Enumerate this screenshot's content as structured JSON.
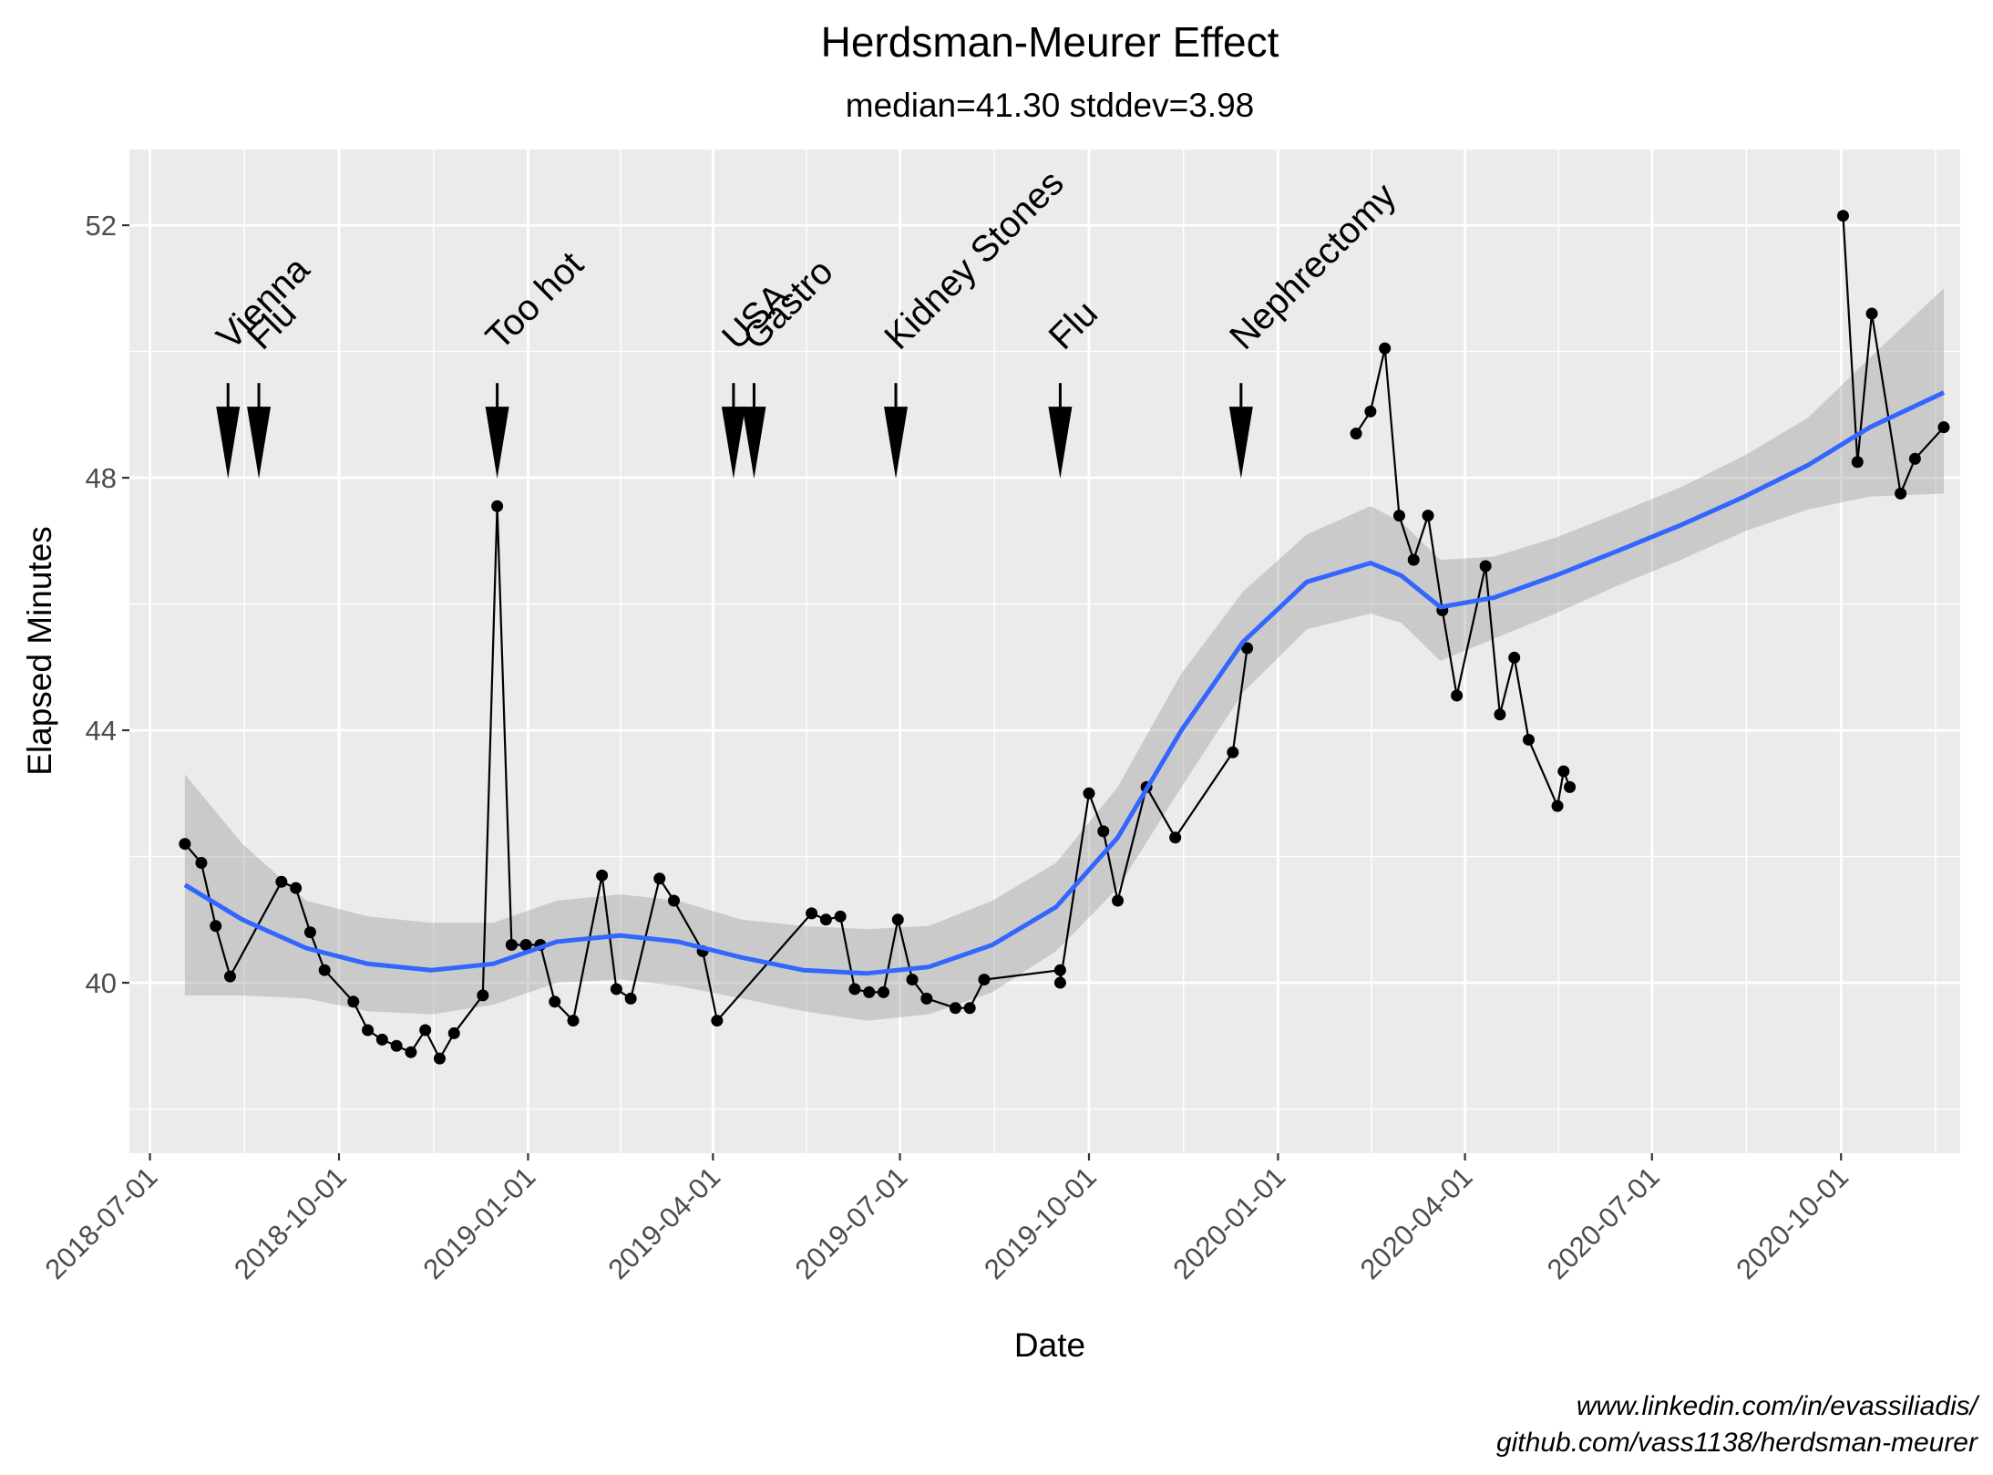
{
  "chart_data": {
    "type": "line",
    "title": "Herdsman-Meurer Effect",
    "subtitle": "median=41.30 stddev=3.98",
    "xlabel": "Date",
    "ylabel": "Elapsed Minutes",
    "xlim": [
      "2018-06-21",
      "2020-11-28"
    ],
    "ylim": [
      37.3,
      53.2
    ],
    "y_ticks": [
      40,
      44,
      48,
      52
    ],
    "x_ticks": [
      "2018-07-01",
      "2018-10-01",
      "2019-01-01",
      "2019-04-01",
      "2019-07-01",
      "2019-10-01",
      "2020-01-01",
      "2020-04-01",
      "2020-07-01",
      "2020-10-01"
    ],
    "grid": true,
    "background": "#ebebeb",
    "colors": {
      "data": "#000000",
      "smooth": "#3366ff",
      "ribbon": "#999999"
    },
    "series": [
      {
        "segments": [
          [
            {
              "x": "2018-07-18",
              "y": 42.2
            },
            {
              "x": "2018-07-26",
              "y": 41.9
            },
            {
              "x": "2018-08-02",
              "y": 40.9
            },
            {
              "x": "2018-08-09",
              "y": 40.1
            },
            {
              "x": "2018-09-03",
              "y": 41.6
            },
            {
              "x": "2018-09-10",
              "y": 41.5
            },
            {
              "x": "2018-09-17",
              "y": 40.8
            },
            {
              "x": "2018-09-24",
              "y": 40.2
            },
            {
              "x": "2018-10-08",
              "y": 39.7
            },
            {
              "x": "2018-10-15",
              "y": 39.25
            },
            {
              "x": "2018-10-22",
              "y": 39.1
            },
            {
              "x": "2018-10-29",
              "y": 39.0
            },
            {
              "x": "2018-11-05",
              "y": 38.9
            },
            {
              "x": "2018-11-12",
              "y": 39.25
            },
            {
              "x": "2018-11-19",
              "y": 38.8
            },
            {
              "x": "2018-11-26",
              "y": 39.2
            },
            {
              "x": "2018-12-10",
              "y": 39.8
            },
            {
              "x": "2018-12-17",
              "y": 47.55
            },
            {
              "x": "2018-12-24",
              "y": 40.6
            },
            {
              "x": "2018-12-31",
              "y": 40.6
            },
            {
              "x": "2019-01-07",
              "y": 40.6
            },
            {
              "x": "2019-01-14",
              "y": 39.7
            },
            {
              "x": "2019-01-23",
              "y": 39.4
            },
            {
              "x": "2019-02-06",
              "y": 41.7
            },
            {
              "x": "2019-02-13",
              "y": 39.9
            },
            {
              "x": "2019-02-20",
              "y": 39.75
            },
            {
              "x": "2019-03-06",
              "y": 41.65
            },
            {
              "x": "2019-03-13",
              "y": 41.3
            },
            {
              "x": "2019-03-27",
              "y": 40.5
            },
            {
              "x": "2019-04-03",
              "y": 39.4
            },
            {
              "x": "2019-05-19",
              "y": 41.1
            },
            {
              "x": "2019-05-26",
              "y": 41.0
            },
            {
              "x": "2019-06-02",
              "y": 41.05
            },
            {
              "x": "2019-06-09",
              "y": 39.9
            },
            {
              "x": "2019-06-16",
              "y": 39.85
            },
            {
              "x": "2019-06-23",
              "y": 39.85
            },
            {
              "x": "2019-06-30",
              "y": 41.0
            },
            {
              "x": "2019-07-07",
              "y": 40.05
            },
            {
              "x": "2019-07-14",
              "y": 39.75
            },
            {
              "x": "2019-07-28",
              "y": 39.6
            },
            {
              "x": "2019-08-04",
              "y": 39.6
            },
            {
              "x": "2019-08-11",
              "y": 40.05
            },
            {
              "x": "2019-09-17",
              "y": 40.2
            },
            {
              "x": "2019-09-17",
              "y": 40.0
            },
            {
              "x": "2019-10-01",
              "y": 43.0
            },
            {
              "x": "2019-10-08",
              "y": 42.4
            },
            {
              "x": "2019-10-15",
              "y": 41.3
            },
            {
              "x": "2019-10-29",
              "y": 43.1
            },
            {
              "x": "2019-11-12",
              "y": 42.3
            },
            {
              "x": "2019-12-10",
              "y": 43.65
            },
            {
              "x": "2019-12-17",
              "y": 45.3
            }
          ],
          [
            {
              "x": "2020-02-08",
              "y": 48.7
            },
            {
              "x": "2020-02-15",
              "y": 49.05
            },
            {
              "x": "2020-02-22",
              "y": 50.05
            },
            {
              "x": "2020-02-29",
              "y": 47.4
            },
            {
              "x": "2020-03-07",
              "y": 46.7
            },
            {
              "x": "2020-03-14",
              "y": 47.4
            },
            {
              "x": "2020-03-21",
              "y": 45.9
            },
            {
              "x": "2020-03-28",
              "y": 44.55
            },
            {
              "x": "2020-04-11",
              "y": 46.6
            },
            {
              "x": "2020-04-18",
              "y": 44.25
            },
            {
              "x": "2020-04-25",
              "y": 45.15
            },
            {
              "x": "2020-05-02",
              "y": 43.85
            },
            {
              "x": "2020-05-16",
              "y": 42.8
            },
            {
              "x": "2020-05-19",
              "y": 43.35
            },
            {
              "x": "2020-05-22",
              "y": 43.1
            }
          ],
          [
            {
              "x": "2020-10-02",
              "y": 52.15
            },
            {
              "x": "2020-10-09",
              "y": 48.25
            },
            {
              "x": "2020-10-16",
              "y": 50.6
            },
            {
              "x": "2020-10-30",
              "y": 47.75
            },
            {
              "x": "2020-11-06",
              "y": 48.3
            },
            {
              "x": "2020-11-20",
              "y": 48.8
            }
          ]
        ]
      }
    ],
    "smooth": [
      {
        "x": "2018-07-18",
        "y": 41.55,
        "lo": 39.8,
        "hi": 43.3
      },
      {
        "x": "2018-08-15",
        "y": 41.0,
        "lo": 39.8,
        "hi": 42.2
      },
      {
        "x": "2018-09-15",
        "y": 40.55,
        "lo": 39.75,
        "hi": 41.3
      },
      {
        "x": "2018-10-15",
        "y": 40.3,
        "lo": 39.55,
        "hi": 41.05
      },
      {
        "x": "2018-11-15",
        "y": 40.2,
        "lo": 39.5,
        "hi": 40.95
      },
      {
        "x": "2018-12-15",
        "y": 40.3,
        "lo": 39.65,
        "hi": 40.95
      },
      {
        "x": "2019-01-15",
        "y": 40.65,
        "lo": 40.0,
        "hi": 41.3
      },
      {
        "x": "2019-02-15",
        "y": 40.75,
        "lo": 40.05,
        "hi": 41.4
      },
      {
        "x": "2019-03-15",
        "y": 40.65,
        "lo": 39.95,
        "hi": 41.3
      },
      {
        "x": "2019-04-15",
        "y": 40.4,
        "lo": 39.75,
        "hi": 41.0
      },
      {
        "x": "2019-05-15",
        "y": 40.2,
        "lo": 39.55,
        "hi": 40.9
      },
      {
        "x": "2019-06-15",
        "y": 40.15,
        "lo": 39.4,
        "hi": 40.85
      },
      {
        "x": "2019-07-15",
        "y": 40.25,
        "lo": 39.5,
        "hi": 40.9
      },
      {
        "x": "2019-08-15",
        "y": 40.6,
        "lo": 39.85,
        "hi": 41.3
      },
      {
        "x": "2019-09-15",
        "y": 41.2,
        "lo": 40.5,
        "hi": 41.9
      },
      {
        "x": "2019-10-15",
        "y": 42.3,
        "lo": 41.5,
        "hi": 43.1
      },
      {
        "x": "2019-11-15",
        "y": 44.0,
        "lo": 43.1,
        "hi": 44.9
      },
      {
        "x": "2019-12-15",
        "y": 45.4,
        "lo": 44.6,
        "hi": 46.2
      },
      {
        "x": "2020-01-15",
        "y": 46.35,
        "lo": 45.6,
        "hi": 47.1
      },
      {
        "x": "2020-02-15",
        "y": 46.65,
        "lo": 45.85,
        "hi": 47.55
      },
      {
        "x": "2020-03-01",
        "y": 46.45,
        "lo": 45.7,
        "hi": 47.3
      },
      {
        "x": "2020-03-20",
        "y": 45.95,
        "lo": 45.1,
        "hi": 46.7
      },
      {
        "x": "2020-04-15",
        "y": 46.1,
        "lo": 45.45,
        "hi": 46.75
      },
      {
        "x": "2020-05-15",
        "y": 46.45,
        "lo": 45.85,
        "hi": 47.05
      },
      {
        "x": "2020-06-15",
        "y": 46.85,
        "lo": 46.3,
        "hi": 47.45
      },
      {
        "x": "2020-07-15",
        "y": 47.25,
        "lo": 46.7,
        "hi": 47.85
      },
      {
        "x": "2020-08-15",
        "y": 47.7,
        "lo": 47.15,
        "hi": 48.35
      },
      {
        "x": "2020-09-15",
        "y": 48.2,
        "lo": 47.5,
        "hi": 48.95
      },
      {
        "x": "2020-10-15",
        "y": 48.8,
        "lo": 47.7,
        "hi": 49.9
      },
      {
        "x": "2020-11-20",
        "y": 49.35,
        "lo": 47.75,
        "hi": 51.0
      }
    ],
    "annotations": [
      {
        "label": "Vienna",
        "x": "2018-08-08",
        "y_base": 49.5,
        "y_tip": 48.0
      },
      {
        "label": "Flu",
        "x": "2018-08-23",
        "y_base": 49.5,
        "y_tip": 48.0
      },
      {
        "label": "Too hot",
        "x": "2018-12-17",
        "y_base": 49.5,
        "y_tip": 48.0
      },
      {
        "label": "USA",
        "x": "2019-04-11",
        "y_base": 49.5,
        "y_tip": 48.0
      },
      {
        "label": "Gastro",
        "x": "2019-04-21",
        "y_base": 49.5,
        "y_tip": 48.0
      },
      {
        "label": "Kidney Stones",
        "x": "2019-06-29",
        "y_base": 49.5,
        "y_tip": 48.0
      },
      {
        "label": "Flu",
        "x": "2019-09-17",
        "y_base": 49.5,
        "y_tip": 48.0
      },
      {
        "label": "Nephrectomy",
        "x": "2019-12-14",
        "y_base": 49.5,
        "y_tip": 48.0
      }
    ],
    "caption": [
      "www.linkedin.com/in/evassiliadis/",
      "github.com/vass1138/herdsman-meurer"
    ]
  }
}
